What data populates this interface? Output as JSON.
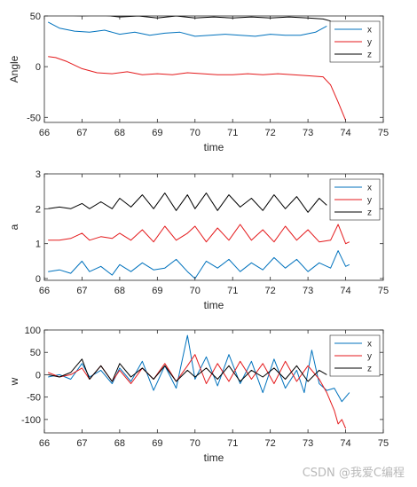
{
  "watermark": "CSDN @我爱C编程",
  "colors": {
    "x": "#0072bd",
    "y": "#e41a1c",
    "z": "#000000",
    "axis": "#262626"
  },
  "chart_data": [
    {
      "type": "line",
      "xlabel": "time",
      "ylabel": "Angle",
      "xlim": [
        66,
        75
      ],
      "ylim": [
        -55,
        50
      ],
      "xticks": [
        66,
        67,
        68,
        69,
        70,
        71,
        72,
        73,
        74,
        75
      ],
      "yticks": [
        -50,
        0,
        50
      ],
      "legend_position": "top-right",
      "series": [
        {
          "name": "x",
          "x": [
            66.1,
            66.4,
            66.8,
            67.2,
            67.6,
            68.0,
            68.4,
            68.8,
            69.2,
            69.6,
            70.0,
            70.4,
            70.8,
            71.2,
            71.6,
            72.0,
            72.4,
            72.8,
            73.2,
            73.5
          ],
          "y": [
            44,
            38,
            35,
            34,
            36,
            32,
            34,
            31,
            33,
            34,
            30,
            31,
            32,
            31,
            30,
            32,
            31,
            31,
            34,
            40
          ]
        },
        {
          "name": "y",
          "x": [
            66.1,
            66.3,
            66.6,
            67.0,
            67.4,
            67.8,
            68.2,
            68.6,
            69.0,
            69.4,
            69.8,
            70.2,
            70.6,
            71.0,
            71.4,
            71.8,
            72.2,
            72.6,
            73.0,
            73.4,
            73.6,
            73.8,
            74.0
          ],
          "y": [
            10,
            9,
            5,
            -2,
            -6,
            -7,
            -5,
            -8,
            -7,
            -8,
            -6,
            -7,
            -8,
            -8,
            -7,
            -8,
            -7,
            -8,
            -9,
            -10,
            -18,
            -35,
            -53
          ]
        },
        {
          "name": "z",
          "x": [
            66.1,
            66.5,
            67.0,
            67.5,
            68.0,
            68.5,
            69.0,
            69.5,
            70.0,
            70.5,
            71.0,
            71.5,
            72.0,
            72.5,
            73.0,
            73.4,
            73.6
          ],
          "y": [
            51,
            51,
            50,
            51,
            49,
            50,
            48,
            50,
            48,
            49,
            48,
            49,
            48,
            49,
            48,
            47,
            45
          ]
        }
      ]
    },
    {
      "type": "line",
      "xlabel": "time",
      "ylabel": "a",
      "xlim": [
        66,
        75
      ],
      "ylim": [
        -0.05,
        3
      ],
      "xticks": [
        66,
        67,
        68,
        69,
        70,
        71,
        72,
        73,
        74,
        75
      ],
      "yticks": [
        0,
        1,
        2,
        3
      ],
      "legend_position": "top-right",
      "series": [
        {
          "name": "x",
          "x": [
            66.1,
            66.4,
            66.7,
            67.0,
            67.2,
            67.5,
            67.8,
            68.0,
            68.3,
            68.6,
            68.9,
            69.2,
            69.5,
            69.8,
            70.0,
            70.3,
            70.6,
            70.9,
            71.2,
            71.5,
            71.8,
            72.1,
            72.4,
            72.7,
            73.0,
            73.3,
            73.6,
            73.8,
            74.0,
            74.1
          ],
          "y": [
            0.2,
            0.25,
            0.15,
            0.5,
            0.2,
            0.35,
            0.1,
            0.4,
            0.2,
            0.45,
            0.25,
            0.3,
            0.55,
            0.2,
            0.0,
            0.5,
            0.3,
            0.55,
            0.2,
            0.45,
            0.25,
            0.6,
            0.3,
            0.55,
            0.2,
            0.45,
            0.3,
            0.8,
            0.35,
            0.4
          ]
        },
        {
          "name": "y",
          "x": [
            66.1,
            66.4,
            66.7,
            67.0,
            67.2,
            67.5,
            67.8,
            68.0,
            68.3,
            68.6,
            68.9,
            69.2,
            69.5,
            69.8,
            70.0,
            70.3,
            70.6,
            70.9,
            71.2,
            71.5,
            71.8,
            72.1,
            72.4,
            72.7,
            73.0,
            73.3,
            73.6,
            73.8,
            74.0,
            74.1
          ],
          "y": [
            1.1,
            1.1,
            1.15,
            1.3,
            1.1,
            1.2,
            1.15,
            1.3,
            1.1,
            1.4,
            1.05,
            1.5,
            1.1,
            1.3,
            1.5,
            1.05,
            1.45,
            1.1,
            1.55,
            1.1,
            1.4,
            1.05,
            1.5,
            1.1,
            1.4,
            1.05,
            1.1,
            1.55,
            1.0,
            1.05
          ]
        },
        {
          "name": "z",
          "x": [
            66.1,
            66.4,
            66.7,
            67.0,
            67.2,
            67.5,
            67.8,
            68.0,
            68.3,
            68.6,
            68.9,
            69.2,
            69.5,
            69.8,
            70.0,
            70.3,
            70.6,
            70.9,
            71.2,
            71.5,
            71.8,
            72.1,
            72.4,
            72.7,
            73.0,
            73.3,
            73.5
          ],
          "y": [
            2.0,
            2.05,
            2.0,
            2.15,
            2.0,
            2.2,
            2.0,
            2.3,
            2.05,
            2.4,
            2.0,
            2.45,
            1.95,
            2.4,
            2.0,
            2.45,
            1.95,
            2.4,
            2.05,
            2.3,
            1.95,
            2.4,
            2.0,
            2.35,
            1.9,
            2.3,
            2.1
          ]
        }
      ]
    },
    {
      "type": "line",
      "xlabel": "time",
      "ylabel": "w",
      "xlim": [
        66,
        75
      ],
      "ylim": [
        -130,
        100
      ],
      "xticks": [
        66,
        67,
        68,
        69,
        70,
        71,
        72,
        73,
        74,
        75
      ],
      "yticks": [
        -100,
        -50,
        0,
        50,
        100
      ],
      "legend_position": "top-right",
      "series": [
        {
          "name": "x",
          "x": [
            66.1,
            66.4,
            66.7,
            67.0,
            67.2,
            67.5,
            67.8,
            68.0,
            68.3,
            68.6,
            68.9,
            69.2,
            69.5,
            69.8,
            70.0,
            70.3,
            70.6,
            70.9,
            71.2,
            71.5,
            71.8,
            72.1,
            72.4,
            72.7,
            72.9,
            73.1,
            73.3,
            73.5,
            73.7,
            73.9,
            74.1
          ],
          "y": [
            -5,
            0,
            -10,
            25,
            -5,
            10,
            -20,
            15,
            -15,
            30,
            -35,
            20,
            -30,
            88,
            -10,
            40,
            -25,
            45,
            -20,
            30,
            -40,
            35,
            -30,
            10,
            -40,
            55,
            -20,
            -35,
            -30,
            -60,
            -40
          ]
        },
        {
          "name": "y",
          "x": [
            66.1,
            66.4,
            66.7,
            67.0,
            67.2,
            67.5,
            67.8,
            68.0,
            68.3,
            68.6,
            68.9,
            69.2,
            69.5,
            69.8,
            70.0,
            70.3,
            70.6,
            70.9,
            71.2,
            71.5,
            71.8,
            72.1,
            72.4,
            72.7,
            73.0,
            73.3,
            73.5,
            73.7,
            73.8,
            73.9,
            74.0
          ],
          "y": [
            5,
            -5,
            0,
            15,
            -10,
            20,
            -15,
            10,
            -20,
            15,
            -10,
            25,
            -15,
            20,
            45,
            -20,
            25,
            -15,
            30,
            -10,
            25,
            -20,
            30,
            -15,
            20,
            -10,
            -40,
            -80,
            -110,
            -100,
            -120
          ]
        },
        {
          "name": "z",
          "x": [
            66.1,
            66.4,
            66.7,
            67.0,
            67.2,
            67.5,
            67.8,
            68.0,
            68.3,
            68.6,
            68.9,
            69.2,
            69.5,
            69.8,
            70.0,
            70.3,
            70.6,
            70.9,
            71.2,
            71.5,
            71.8,
            72.1,
            72.4,
            72.7,
            73.0,
            73.3,
            73.5
          ],
          "y": [
            0,
            -5,
            5,
            35,
            -10,
            20,
            -15,
            25,
            -5,
            15,
            -10,
            20,
            -15,
            10,
            -5,
            15,
            -10,
            20,
            -15,
            10,
            -5,
            15,
            -10,
            20,
            -15,
            10,
            0
          ]
        }
      ]
    }
  ]
}
